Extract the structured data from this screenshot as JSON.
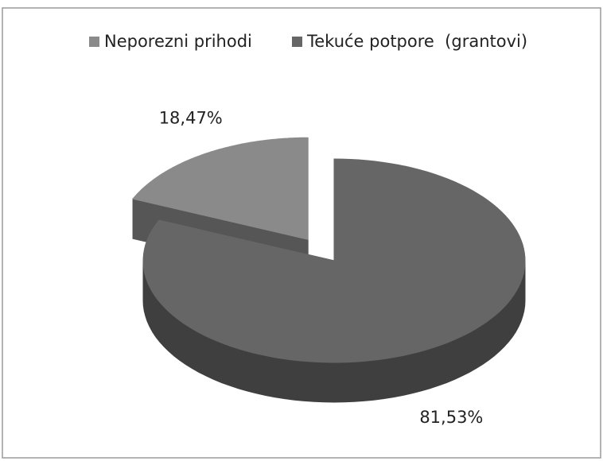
{
  "chart_data": {
    "type": "pie3d",
    "series": [
      {
        "name": "Neporezni prihodi",
        "color": "#8a8a8a",
        "values": [
          18.47
        ],
        "value_labels": [
          "18,47%"
        ]
      },
      {
        "name": "Tekuće potpore  (grantovi)",
        "color": "#666666",
        "values": [
          81.53
        ],
        "value_labels": [
          "81,53%"
        ]
      }
    ],
    "legend": "top"
  }
}
